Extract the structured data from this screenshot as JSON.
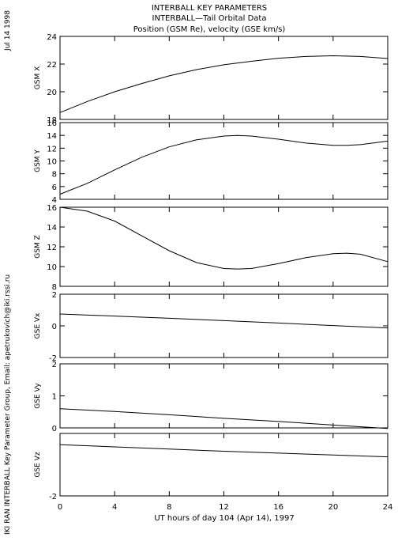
{
  "header": {
    "title_lines": [
      "INTERBALL KEY PARAMETERS",
      "INTERBALL—Tail Orbital Data",
      "Position (GSM Re), velocity (GSE km/s)"
    ],
    "date_stamp": "Jul 14 1998",
    "credit": "IKI RAN INTERBALL Key Parameter Group, Email: apetrukovich@iki.rssi.ru"
  },
  "chart_data": {
    "type": "line",
    "x_axis": {
      "label": "UT hours of day 104 (Apr 14), 1997",
      "range": [
        0,
        24
      ],
      "ticks": [
        0,
        4,
        8,
        12,
        16,
        20,
        24
      ]
    },
    "panels": [
      {
        "ylabel": "GSM X",
        "ylim": [
          18,
          24
        ],
        "yticks": [
          18,
          20,
          22,
          24
        ],
        "x": [
          0,
          2,
          4,
          6,
          8,
          10,
          12,
          14,
          16,
          18,
          20,
          22,
          24
        ],
        "y": [
          18.5,
          19.3,
          20.0,
          20.6,
          21.15,
          21.6,
          21.95,
          22.2,
          22.42,
          22.55,
          22.6,
          22.55,
          22.4
        ]
      },
      {
        "ylabel": "GSM Y",
        "ylim": [
          4,
          16
        ],
        "yticks": [
          4,
          6,
          8,
          10,
          12,
          14,
          16
        ],
        "x": [
          0,
          2,
          4,
          6,
          8,
          10,
          12,
          13,
          14,
          16,
          18,
          20,
          21,
          22,
          24
        ],
        "y": [
          4.8,
          6.5,
          8.6,
          10.6,
          12.2,
          13.3,
          13.9,
          14.0,
          13.9,
          13.4,
          12.8,
          12.45,
          12.45,
          12.55,
          13.1
        ]
      },
      {
        "ylabel": "GSM Z",
        "ylim": [
          8,
          16
        ],
        "yticks": [
          8,
          10,
          12,
          14,
          16
        ],
        "x": [
          0,
          2,
          4,
          6,
          8,
          10,
          12,
          13,
          14,
          16,
          18,
          20,
          21,
          22,
          24
        ],
        "y": [
          16.0,
          15.6,
          14.6,
          13.1,
          11.6,
          10.4,
          9.8,
          9.75,
          9.8,
          10.3,
          10.9,
          11.3,
          11.35,
          11.25,
          10.5
        ]
      },
      {
        "ylabel": "GSE Vx",
        "ylim": [
          -2,
          2
        ],
        "yticks": [
          -2,
          0,
          2
        ],
        "x": [
          0,
          4,
          8,
          12,
          16,
          20,
          24
        ],
        "y": [
          0.75,
          0.62,
          0.48,
          0.33,
          0.18,
          0.02,
          -0.13
        ]
      },
      {
        "ylabel": "GSE Vy",
        "ylim": [
          0,
          2
        ],
        "yticks": [
          0,
          1,
          2
        ],
        "x": [
          0,
          4,
          8,
          12,
          16,
          20,
          24
        ],
        "y": [
          0.6,
          0.51,
          0.41,
          0.3,
          0.2,
          0.09,
          -0.02
        ]
      },
      {
        "ylabel": "GSE Vz",
        "ylim": [
          -2,
          0
        ],
        "yticks": [
          -2
        ],
        "x": [
          0,
          4,
          8,
          12,
          16,
          20,
          24
        ],
        "y": [
          -0.36,
          -0.43,
          -0.5,
          -0.57,
          -0.63,
          -0.69,
          -0.75
        ]
      }
    ]
  }
}
